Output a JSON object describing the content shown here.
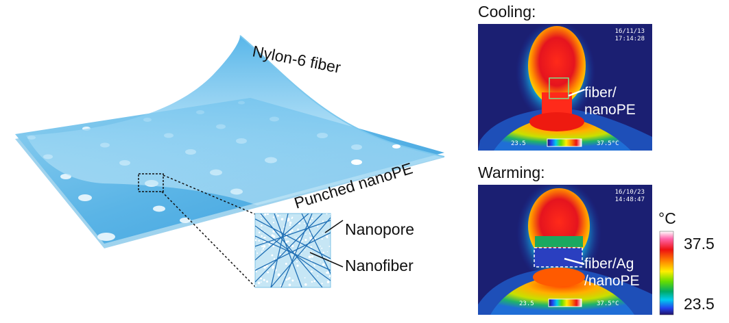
{
  "schematic": {
    "labels": {
      "fiber_layer": "Nylon-6 fiber",
      "pe_layer": "Punched nanoPE",
      "nanopore": "Nanopore",
      "nanofiber": "Nanofiber"
    }
  },
  "thermal": {
    "cooling": {
      "title": "Cooling:",
      "date": "16/11/13",
      "time": "17:14:28",
      "label_line1": "fiber/",
      "label_line2": "nanoPE",
      "scale_min": "23.5",
      "scale_max": "37.5°C"
    },
    "warming": {
      "title": "Warming:",
      "date": "16/10/23",
      "time": "14:48:47",
      "label_line1": "fiber/Ag",
      "label_line2": "/nanoPE",
      "scale_min": "23.5",
      "scale_max": "37.5°C"
    }
  },
  "colorbar": {
    "unit": "°C",
    "max": "37.5",
    "min": "23.5",
    "colors": [
      "#ffffff",
      "#ff66aa",
      "#ee1111",
      "#ff8800",
      "#ffee00",
      "#66dd00",
      "#00aa66",
      "#00ccee",
      "#2244ee",
      "#221166"
    ]
  }
}
